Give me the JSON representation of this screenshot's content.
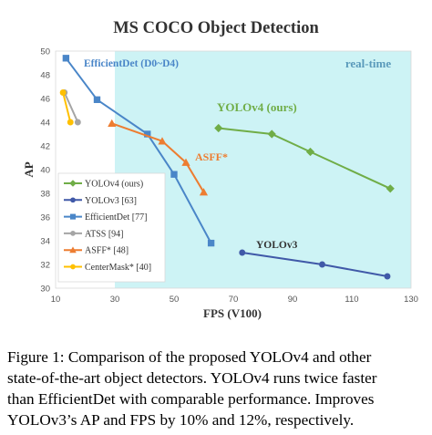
{
  "chart_data": {
    "type": "line",
    "title": "MS COCO Object Detection",
    "xlabel": "FPS (V100)",
    "ylabel": "AP",
    "xlim": [
      10,
      130
    ],
    "ylim": [
      30,
      50
    ],
    "xticks": [
      10,
      30,
      50,
      70,
      90,
      110,
      130
    ],
    "yticks": [
      30,
      32,
      34,
      36,
      38,
      40,
      42,
      44,
      46,
      48,
      50
    ],
    "realtime_region": {
      "x_from": 30,
      "label": "real-time",
      "color": "#CDF3F5"
    },
    "legend_position": "left",
    "series": [
      {
        "name": "YOLOv4 (ours)",
        "color": "#70AD47",
        "marker": "diamond",
        "label_text": "YOLOv4 (ours)",
        "x": [
          65,
          83,
          96,
          123
        ],
        "y": [
          43.5,
          43,
          41.5,
          38.4
        ]
      },
      {
        "name": "YOLOv3 [63]",
        "color": "#4059A8",
        "marker": "circle",
        "label_text": "YOLOv3",
        "x": [
          73,
          100,
          122
        ],
        "y": [
          33,
          32,
          31
        ]
      },
      {
        "name": "EfficientDet [77]",
        "color": "#4A86C8",
        "marker": "square",
        "label_text": "EfficientDet (D0~D4)",
        "x": [
          13.5,
          24,
          41,
          50,
          62.5
        ],
        "y": [
          49.4,
          45.9,
          43,
          39.6,
          33.8
        ]
      },
      {
        "name": "ATSS [94]",
        "color": "#A5A5A5",
        "marker": "circle",
        "label_text": "",
        "x": [
          13,
          17.5
        ],
        "y": [
          46.5,
          44
        ]
      },
      {
        "name": "ASFF* [48]",
        "color": "#ED7D31",
        "marker": "triangle",
        "label_text": "ASFF*",
        "x": [
          29,
          46,
          54,
          60
        ],
        "y": [
          43.9,
          42.4,
          40.6,
          38.1
        ]
      },
      {
        "name": "CenterMask* [40]",
        "color": "#FFC000",
        "marker": "circle",
        "label_text": "",
        "x": [
          12.5,
          15
        ],
        "y": [
          46.5,
          44
        ]
      }
    ]
  },
  "caption": {
    "lines": [
      "Figure 1: Comparison of the proposed YOLOv4 and other",
      "state-of-the-art object detectors. YOLOv4 runs twice faster",
      "than EfficientDet with comparable performance. Improves",
      "YOLOv3’s AP and FPS by 10% and 12%, respectively."
    ]
  }
}
